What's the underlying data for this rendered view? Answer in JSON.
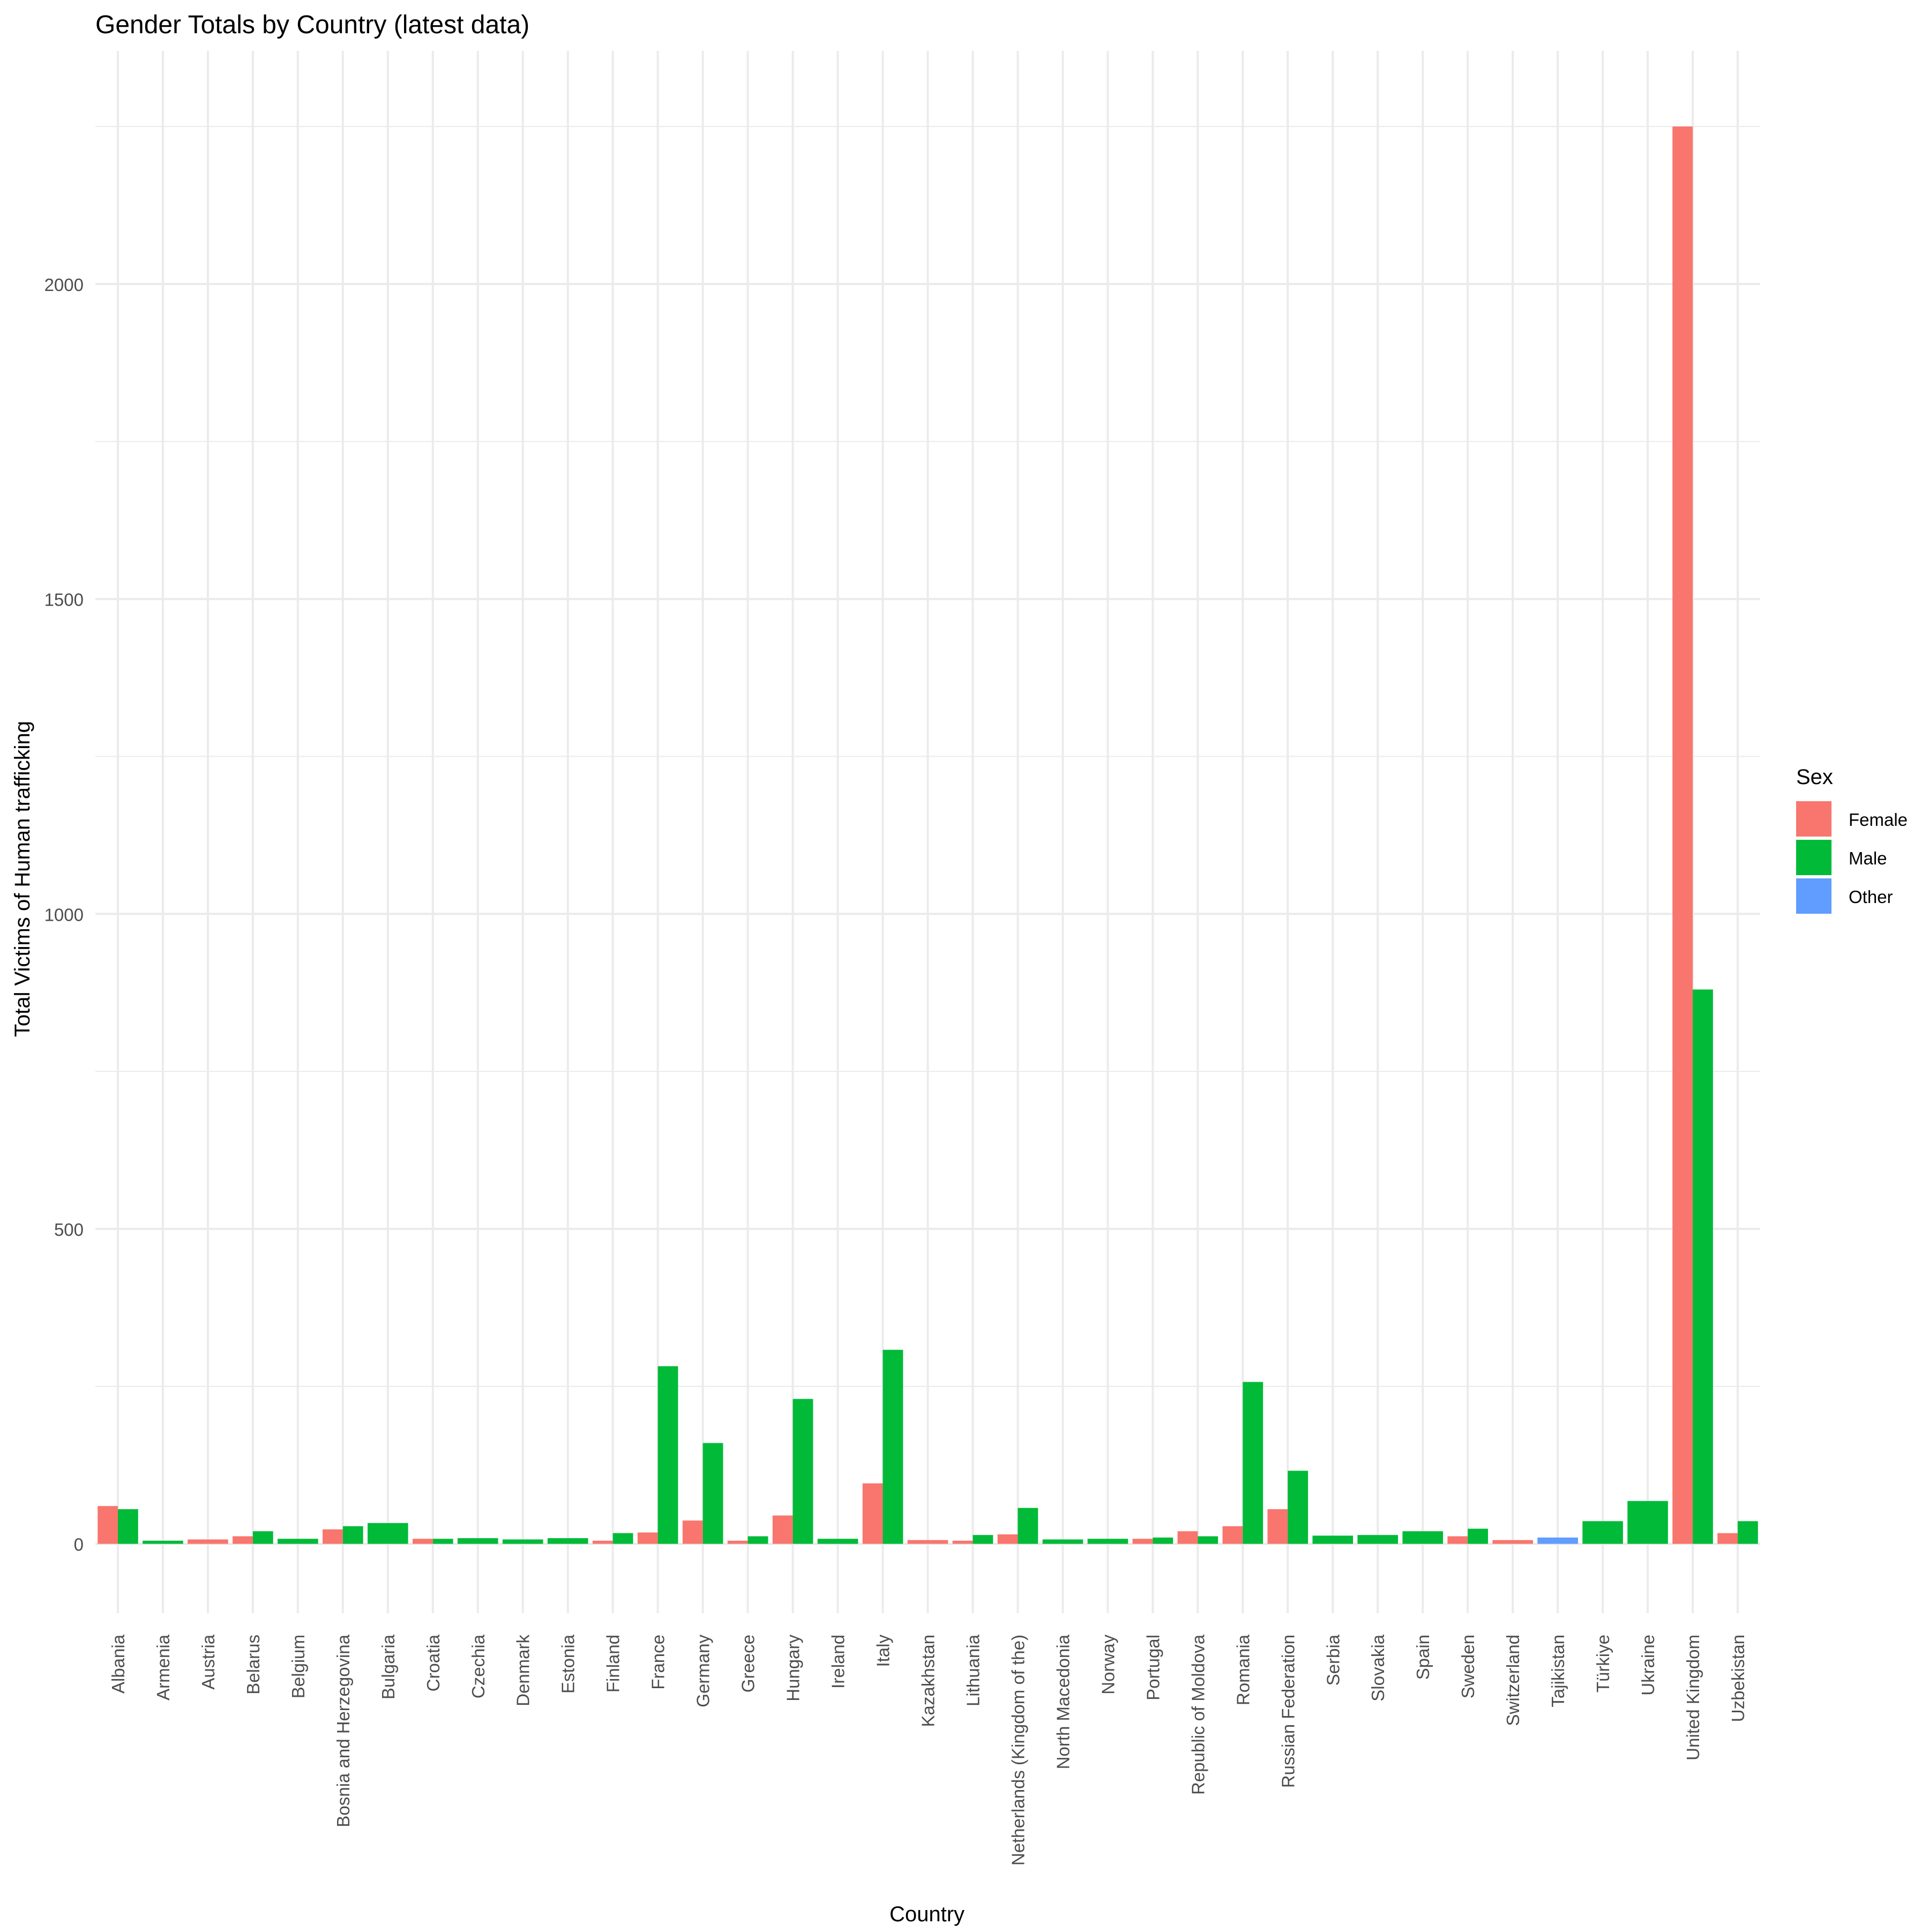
{
  "chart_data": {
    "type": "bar",
    "title": "Gender Totals by Country (latest data)",
    "xlabel": "Country",
    "ylabel": "Total Victims of Human trafficking",
    "ylim": [
      -110,
      2370
    ],
    "yticks": [
      0,
      500,
      1000,
      1500,
      2000
    ],
    "grid": true,
    "legend": {
      "title": "Sex",
      "position": "right"
    },
    "colors": {
      "Female": "#F8766D",
      "Male": "#00BA38",
      "Other": "#619CFF"
    },
    "categories": [
      "Albania",
      "Armenia",
      "Austria",
      "Belarus",
      "Belgium",
      "Bosnia and Herzegovina",
      "Bulgaria",
      "Croatia",
      "Czechia",
      "Denmark",
      "Estonia",
      "Finland",
      "France",
      "Germany",
      "Greece",
      "Hungary",
      "Ireland",
      "Italy",
      "Kazakhstan",
      "Lithuania",
      "Netherlands (Kingdom of the)",
      "North Macedonia",
      "Norway",
      "Portugal",
      "Republic of Moldova",
      "Romania",
      "Russian Federation",
      "Serbia",
      "Slovakia",
      "Spain",
      "Sweden",
      "Switzerland",
      "Tajikistan",
      "Türkiye",
      "Ukraine",
      "United Kingdom",
      "Uzbekistan"
    ],
    "series": [
      {
        "name": "Female",
        "values": [
          60,
          null,
          7,
          12,
          null,
          23,
          null,
          8,
          null,
          null,
          null,
          5,
          18,
          37,
          5,
          45,
          null,
          96,
          6,
          5,
          15,
          null,
          null,
          8,
          20,
          28,
          55,
          null,
          null,
          null,
          12,
          6,
          null,
          null,
          null,
          2250,
          17
        ]
      },
      {
        "name": "Male",
        "values": [
          55,
          5,
          null,
          20,
          8,
          28,
          33,
          8,
          9,
          7,
          9,
          17,
          282,
          160,
          12,
          230,
          8,
          308,
          null,
          14,
          57,
          7,
          8,
          10,
          12,
          257,
          116,
          13,
          14,
          20,
          24,
          null,
          null,
          36,
          68,
          880,
          36
        ]
      },
      {
        "name": "Other",
        "values": [
          null,
          null,
          null,
          null,
          null,
          null,
          null,
          null,
          null,
          null,
          null,
          null,
          null,
          null,
          null,
          null,
          null,
          null,
          null,
          null,
          null,
          null,
          null,
          null,
          null,
          null,
          null,
          null,
          null,
          null,
          null,
          null,
          10,
          null,
          null,
          null,
          null
        ]
      }
    ]
  }
}
